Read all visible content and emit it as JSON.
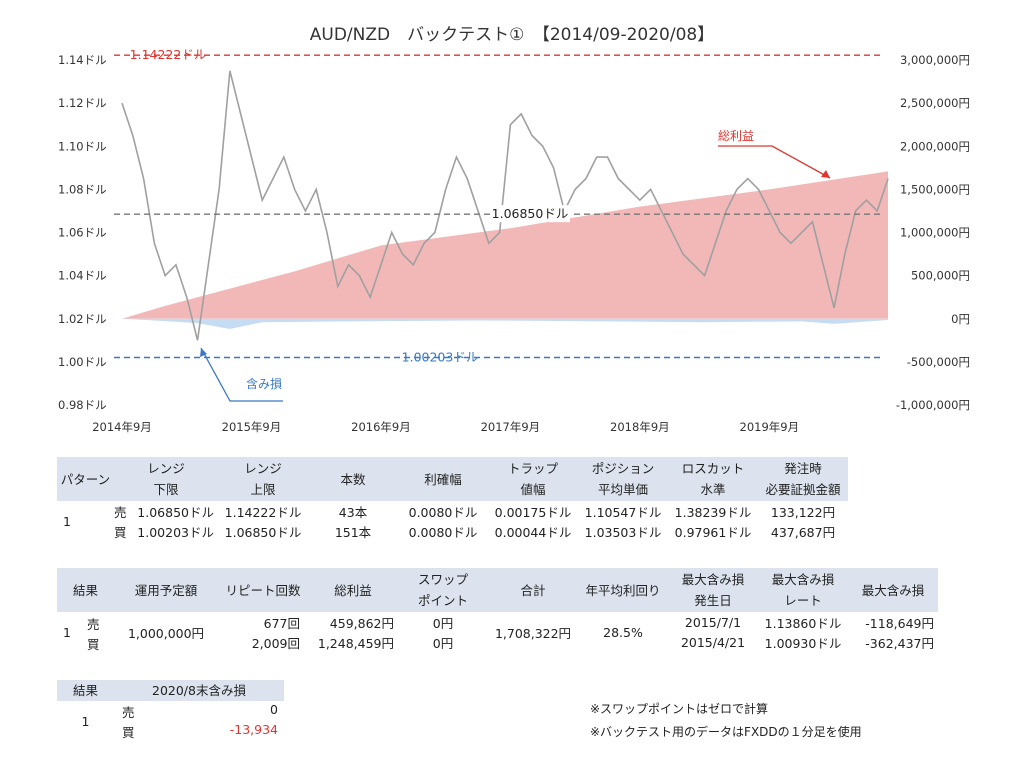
{
  "chart_data": {
    "type": "line",
    "title": "AUD/NZD　バックテスト①　【2014/09-2020/08】",
    "left_axis": {
      "ticks": [
        "1.14ドル",
        "1.12ドル",
        "1.10ドル",
        "1.08ドル",
        "1.06ドル",
        "1.04ドル",
        "1.02ドル",
        "1.00ドル",
        "0.98ドル"
      ],
      "range": [
        0.98,
        1.14
      ]
    },
    "right_axis": {
      "ticks": [
        "3,000,000円",
        "2,500,000円",
        "2,000,000円",
        "1,500,000円",
        "1,000,000円",
        "500,000円",
        "0円",
        "-500,000円",
        "-1,000,000円"
      ],
      "range": [
        -1000000,
        3000000
      ]
    },
    "x_ticks": [
      "2014年9月",
      "2015年9月",
      "2016年9月",
      "2017年9月",
      "2018年9月",
      "2019年9月"
    ],
    "x_range": [
      "2014-09",
      "2020-08"
    ],
    "ref_lines": [
      {
        "value": 1.14222,
        "label": "1.14222ドル",
        "color": "#e0352f"
      },
      {
        "value": 1.0685,
        "label": "1.06850ドル",
        "color": "#777777"
      },
      {
        "value": 1.00203,
        "label": "1.00203ドル",
        "color": "#3a78c2"
      }
    ],
    "series": [
      {
        "name": "AUD/NZD",
        "color": "#a0a0a0",
        "x": [
          "2014-09",
          "2014-10",
          "2014-11",
          "2014-12",
          "2015-01",
          "2015-02",
          "2015-03",
          "2015-04",
          "2015-05",
          "2015-06",
          "2015-07",
          "2015-08",
          "2015-09",
          "2015-10",
          "2015-11",
          "2015-12",
          "2016-01",
          "2016-02",
          "2016-03",
          "2016-04",
          "2016-05",
          "2016-06",
          "2016-07",
          "2016-08",
          "2016-09",
          "2016-10",
          "2016-11",
          "2016-12",
          "2017-01",
          "2017-02",
          "2017-03",
          "2017-04",
          "2017-05",
          "2017-06",
          "2017-07",
          "2017-08",
          "2017-09",
          "2017-10",
          "2017-11",
          "2017-12",
          "2018-01",
          "2018-02",
          "2018-03",
          "2018-04",
          "2018-05",
          "2018-06",
          "2018-07",
          "2018-08",
          "2018-09",
          "2018-10",
          "2018-11",
          "2018-12",
          "2019-01",
          "2019-02",
          "2019-03",
          "2019-04",
          "2019-05",
          "2019-06",
          "2019-07",
          "2019-08",
          "2019-09",
          "2019-10",
          "2019-11",
          "2019-12",
          "2020-01",
          "2020-02",
          "2020-03",
          "2020-04",
          "2020-05",
          "2020-06",
          "2020-07",
          "2020-08"
        ],
        "values": [
          1.12,
          1.105,
          1.085,
          1.055,
          1.04,
          1.045,
          1.03,
          1.01,
          1.045,
          1.08,
          1.135,
          1.115,
          1.095,
          1.075,
          1.085,
          1.095,
          1.08,
          1.07,
          1.08,
          1.06,
          1.035,
          1.045,
          1.04,
          1.03,
          1.045,
          1.06,
          1.05,
          1.045,
          1.055,
          1.06,
          1.08,
          1.095,
          1.085,
          1.07,
          1.055,
          1.06,
          1.11,
          1.115,
          1.105,
          1.1,
          1.09,
          1.07,
          1.08,
          1.085,
          1.095,
          1.095,
          1.085,
          1.08,
          1.075,
          1.08,
          1.07,
          1.06,
          1.05,
          1.045,
          1.04,
          1.055,
          1.07,
          1.08,
          1.085,
          1.08,
          1.07,
          1.06,
          1.055,
          1.06,
          1.065,
          1.045,
          1.025,
          1.05,
          1.07,
          1.075,
          1.07,
          1.085
        ]
      },
      {
        "name": "総利益",
        "color": "#f2b8b8",
        "x": [
          "2014-09",
          "2015-01",
          "2015-07",
          "2016-01",
          "2016-09",
          "2017-09",
          "2018-09",
          "2019-09",
          "2020-08"
        ],
        "values": [
          0,
          150000,
          350000,
          550000,
          850000,
          1050000,
          1300000,
          1500000,
          1708322
        ]
      },
      {
        "name": "含み損",
        "color": "#c6dcf2",
        "x": [
          "2014-09",
          "2014-12",
          "2015-04",
          "2015-07",
          "2015-10",
          "2016-06",
          "2017-06",
          "2018-06",
          "2019-03",
          "2019-12",
          "2020-03",
          "2020-08"
        ],
        "values": [
          0,
          -20000,
          -50000,
          -118649,
          -40000,
          -30000,
          -20000,
          -30000,
          -40000,
          -30000,
          -60000,
          -13934
        ]
      }
    ],
    "annotations": [
      "総利益",
      "含み損"
    ]
  },
  "table1": {
    "headers": [
      "パターン",
      "レンジ\n下限",
      "レンジ\n上限",
      "本数",
      "利確幅",
      "トラップ\n値幅",
      "ポジション\n平均単価",
      "ロスカット\n水準",
      "発注時\n必要証拠金額"
    ],
    "pattern": "1",
    "rows": [
      {
        "side": "売",
        "cells": [
          "1.06850ドル",
          "1.14222ドル",
          "43本",
          "0.0080ドル",
          "0.00175ドル",
          "1.10547ドル",
          "1.38239ドル",
          "133,122円"
        ]
      },
      {
        "side": "買",
        "cells": [
          "1.00203ドル",
          "1.06850ドル",
          "151本",
          "0.0080ドル",
          "0.00044ドル",
          "1.03503ドル",
          "0.97961ドル",
          "437,687円"
        ]
      }
    ]
  },
  "table2": {
    "headers": [
      "結果",
      "運用予定額",
      "リピート回数",
      "総利益",
      "スワップ\nポイント",
      "合計",
      "年平均利回り",
      "最大含み損\n発生日",
      "最大含み損\nレート",
      "最大含み損"
    ],
    "pattern": "1",
    "amount": "1,000,000円",
    "total": "1,708,322円",
    "annual_yield": "28.5%",
    "rows": [
      {
        "side": "売",
        "repeats": "677回",
        "profit": "459,862円",
        "swap": "0円",
        "date": "2015/7/1",
        "rate": "1.13860ドル",
        "max_loss": "-118,649円"
      },
      {
        "side": "買",
        "repeats": "2,009回",
        "profit": "1,248,459円",
        "swap": "0円",
        "date": "2015/4/21",
        "rate": "1.00930ドル",
        "max_loss": "-362,437円"
      }
    ]
  },
  "table3": {
    "headers": [
      "結果",
      "2020/8末含み損"
    ],
    "pattern": "1",
    "rows": [
      {
        "side": "売",
        "value": "0"
      },
      {
        "side": "買",
        "value": "-13,934"
      }
    ]
  },
  "notes": [
    "※スワップポイントはゼロで計算",
    "※バックテスト用のデータはFXDDの１分足を使用"
  ]
}
